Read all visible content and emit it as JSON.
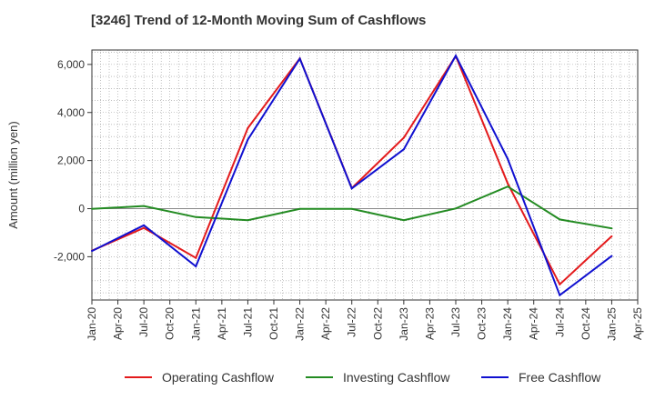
{
  "chart_data": {
    "type": "line",
    "title": "[3246]  Trend of 12-Month Moving Sum of Cashflows",
    "ylabel": "Amount (million yen)",
    "xlabel": "",
    "x_ticks": [
      "Jan-20",
      "Apr-20",
      "Jul-20",
      "Oct-20",
      "Jan-21",
      "Apr-21",
      "Jul-21",
      "Oct-21",
      "Jan-22",
      "Apr-22",
      "Jul-22",
      "Oct-22",
      "Jan-23",
      "Apr-23",
      "Jul-23",
      "Oct-23",
      "Jan-24",
      "Apr-24",
      "Jul-24",
      "Oct-24",
      "Jan-25",
      "Apr-25"
    ],
    "x": [
      "Jan-20",
      "Jul-20",
      "Jan-21",
      "Jul-21",
      "Jan-22",
      "Jul-22",
      "Jan-23",
      "Jul-23",
      "Jan-24",
      "Jul-24",
      "Jan-25"
    ],
    "ylim": [
      -3800,
      6600
    ],
    "y_ticks": [
      -2000,
      0,
      2000,
      4000,
      6000
    ],
    "y_tick_labels": [
      "-2,000",
      "0",
      "2,000",
      "4,000",
      "6,000"
    ],
    "grid": true,
    "legend_position": "bottom",
    "series": [
      {
        "name": "Operating Cashflow",
        "color": "#e31a1c",
        "values": [
          -1750,
          -800,
          -2050,
          3350,
          6250,
          850,
          2950,
          6350,
          1050,
          -3150,
          -1150
        ]
      },
      {
        "name": "Investing Cashflow",
        "color": "#238b22",
        "values": [
          -10,
          110,
          -350,
          -480,
          -10,
          -10,
          -480,
          10,
          920,
          -450,
          -820
        ]
      },
      {
        "name": "Free Cashflow",
        "color": "#1010d0",
        "values": [
          -1760,
          -690,
          -2400,
          2870,
          6240,
          840,
          2470,
          6360,
          2070,
          -3600,
          -1970
        ]
      }
    ]
  }
}
